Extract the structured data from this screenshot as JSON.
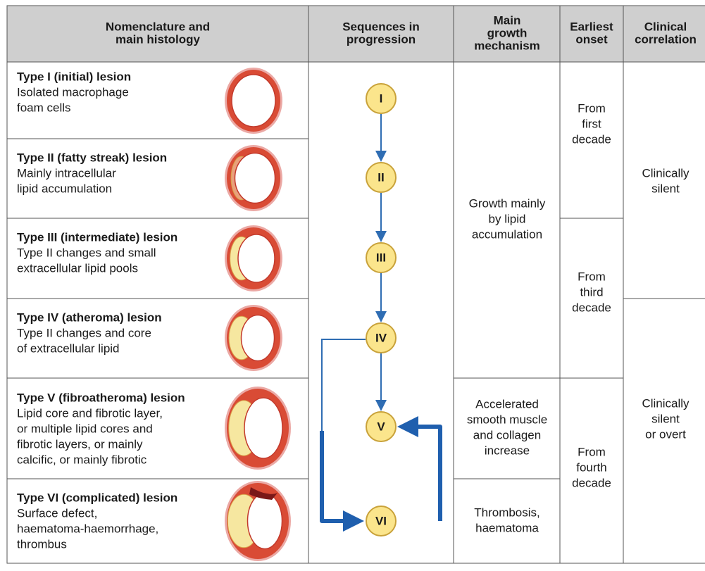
{
  "header": {
    "columns": [
      [
        "Nomenclature and",
        "main histology"
      ],
      [
        "Sequences in",
        "progression"
      ],
      [
        "Main",
        "growth",
        "mechanism"
      ],
      [
        "Earliest",
        "onset"
      ],
      [
        "Clinical",
        "correlation"
      ]
    ]
  },
  "rows": [
    {
      "title": "Type I (initial) lesion",
      "description": [
        "Isolated macrophage",
        "foam cells"
      ]
    },
    {
      "title": "Type II (fatty streak) lesion",
      "description": [
        "Mainly intracellular",
        "lipid accumulation"
      ]
    },
    {
      "title": "Type III (intermediate) lesion",
      "description": [
        "Type II changes and small",
        "extracellular lipid pools"
      ]
    },
    {
      "title": "Type IV (atheroma) lesion",
      "description": [
        "Type II changes and core",
        "of extracellular lipid"
      ]
    },
    {
      "title": "Type V (fibroatheroma) lesion",
      "description": [
        "Lipid core and fibrotic layer,",
        "or multiple lipid cores and",
        "fibrotic layers, or mainly",
        "calcific, or mainly fibrotic"
      ]
    },
    {
      "title": "Type VI (complicated) lesion",
      "description": [
        "Surface defect,",
        "haematoma-haemorrhage,",
        "thrombus"
      ]
    }
  ],
  "sequence": {
    "nodes": [
      "I",
      "II",
      "III",
      "IV",
      "V",
      "VI"
    ]
  },
  "growth_mechanism": [
    [
      "Growth mainly",
      "by lipid",
      "accumulation"
    ],
    [
      "Accelerated",
      "smooth muscle",
      "and collagen",
      "increase"
    ],
    [
      "Thrombosis,",
      "haematoma"
    ]
  ],
  "earliest_onset": [
    [
      "From",
      "first",
      "decade"
    ],
    [
      "From",
      "third",
      "decade"
    ],
    [
      "From",
      "fourth",
      "decade"
    ]
  ],
  "clinical_correlation": [
    [
      "Clinically",
      "silent"
    ],
    [
      "Clinically",
      "silent",
      "or overt"
    ]
  ]
}
